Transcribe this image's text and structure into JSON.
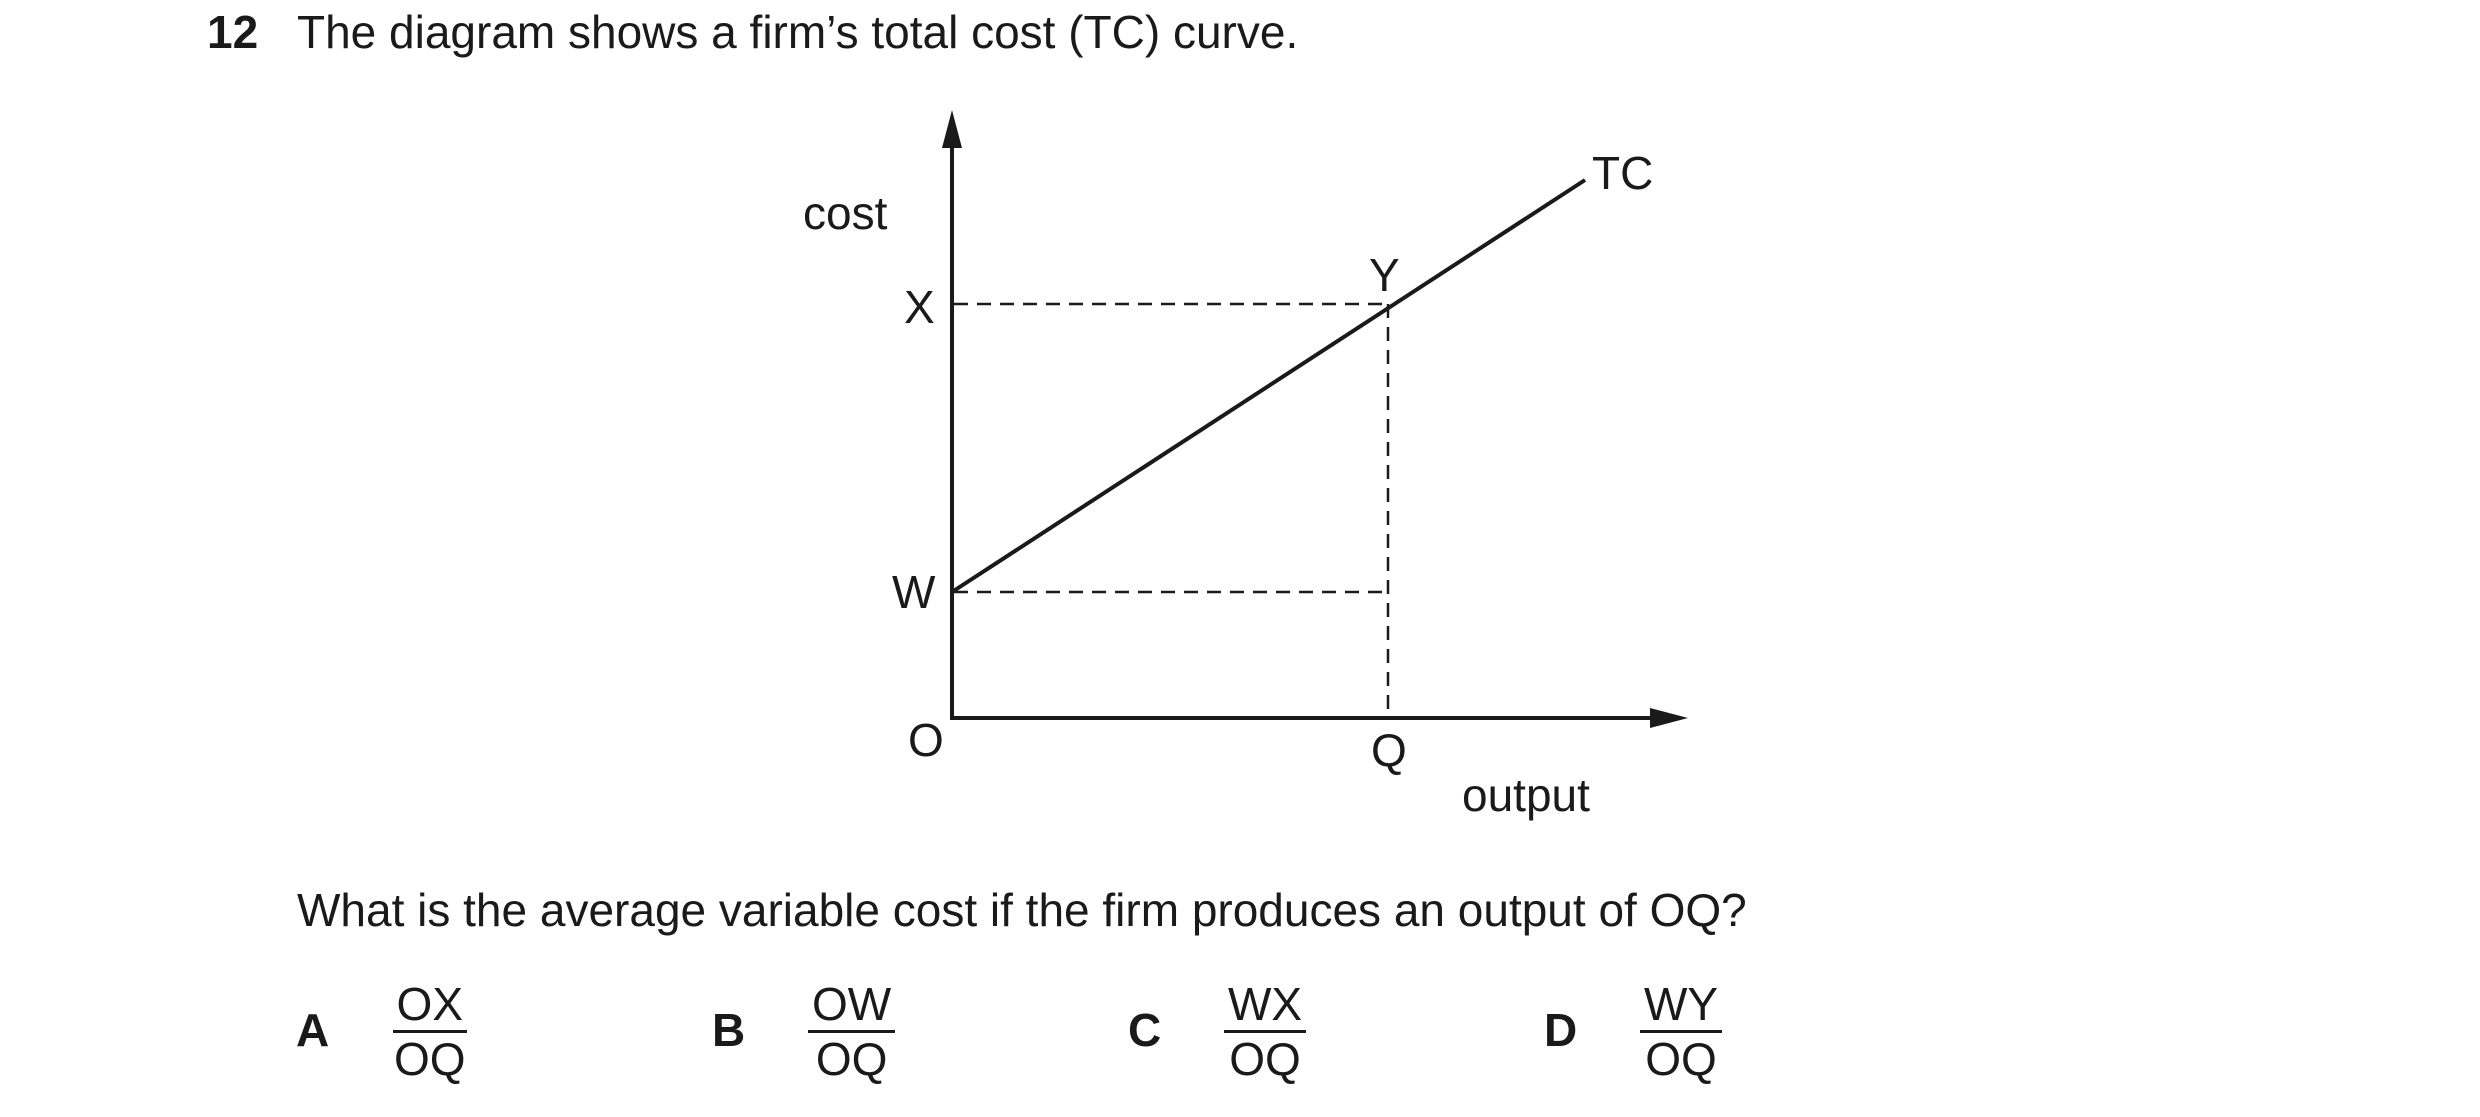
{
  "question": {
    "number": "12",
    "stem": "The diagram shows a firm’s total cost (TC) curve.",
    "prompt": "What is the average variable cost if the firm produces an output of OQ?"
  },
  "diagram": {
    "y_axis_label": "cost",
    "x_axis_label": "output",
    "origin_label": "O",
    "curve_label": "TC",
    "point_labels": {
      "x": "X",
      "w": "W",
      "y": "Y",
      "q": "Q"
    }
  },
  "options": [
    {
      "letter": "A",
      "numerator": "OX",
      "denominator": "OQ"
    },
    {
      "letter": "B",
      "numerator": "OW",
      "denominator": "OQ"
    },
    {
      "letter": "C",
      "numerator": "WX",
      "denominator": "OQ"
    },
    {
      "letter": "D",
      "numerator": "WY",
      "denominator": "OQ"
    }
  ]
}
